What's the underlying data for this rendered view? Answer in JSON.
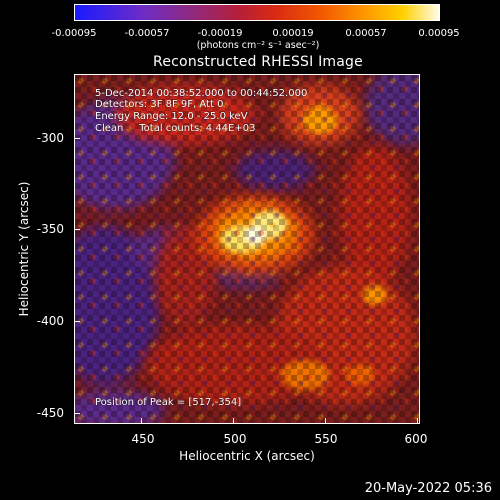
{
  "colorbar": {
    "ticks": [
      "-0.00095",
      "-0.00057",
      "-0.00019",
      "0.00019",
      "0.00057",
      "0.00095"
    ],
    "units": "(photons cm⁻² s⁻¹ asec⁻²)"
  },
  "title": "Reconstructed RHESSI Image",
  "info": {
    "line1": "5-Dec-2014 00:38:52.000 to 00:44:52.000",
    "line2": "Detectors: 3F 8F 9F, Att 0",
    "line3": "Energy Range: 12.0 - 25.0 keV",
    "line4": "Clean     Total counts: 4.44E+03",
    "peak": "Position of Peak = [517,-354]"
  },
  "axes": {
    "xlabel": "Heliocentric X (arcsec)",
    "ylabel": "Heliocentric Y (arcsec)",
    "xticks": [
      "450",
      "500",
      "550",
      "600"
    ],
    "yticks": [
      "-300",
      "-350",
      "-400",
      "-450"
    ]
  },
  "datestamp": "20-May-2022 05:36"
}
